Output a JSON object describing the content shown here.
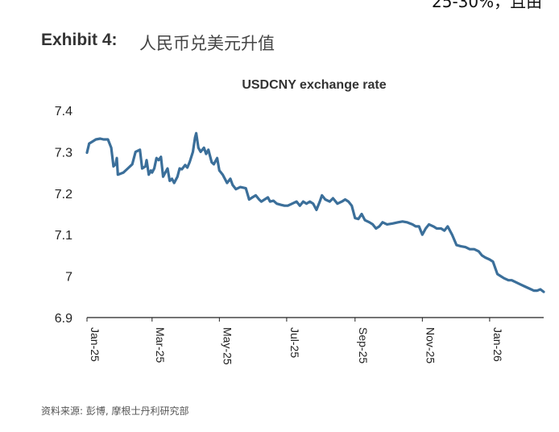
{
  "header": {
    "clipped_text": "25-30%，且由",
    "exhibit_label": "Exhibit 4:",
    "exhibit_title": "人民币兑美元升值"
  },
  "footer": {
    "source": "资料来源: 彭博, 摩根士丹利研究部"
  },
  "colors": {
    "line": "#3B6F9A",
    "axis": "#222222"
  },
  "chart_data": {
    "type": "line",
    "title": "USDCNY exchange rate",
    "xlabel": "",
    "ylabel": "",
    "ylim": [
      6.9,
      7.4
    ],
    "yticks": [
      7.4,
      7.3,
      7.2,
      7.1,
      7,
      6.9
    ],
    "ytick_labels": [
      "7.4",
      "7.3",
      "7.2",
      "7.1",
      "7",
      "6.9"
    ],
    "xlim": [
      "2025-01-01",
      "2026-02-19"
    ],
    "xticks": [
      "2025-01-01",
      "2025-03-01",
      "2025-05-01",
      "2025-07-01",
      "2025-09-01",
      "2025-11-01",
      "2026-01-01"
    ],
    "xtick_labels": [
      "Jan-25",
      "Mar-25",
      "May-25",
      "Jul-25",
      "Sep-25",
      "Nov-25",
      "Jan-26"
    ],
    "grid": false,
    "legend": "none",
    "x": [
      "2025-01-01",
      "2025-01-03",
      "2025-01-06",
      "2025-01-09",
      "2025-01-13",
      "2025-01-16",
      "2025-01-20",
      "2025-01-23",
      "2025-01-25",
      "2025-01-27",
      "2025-01-28",
      "2025-01-29",
      "2025-02-03",
      "2025-02-07",
      "2025-02-11",
      "2025-02-14",
      "2025-02-18",
      "2025-02-20",
      "2025-02-23",
      "2025-02-24",
      "2025-02-26",
      "2025-02-28",
      "2025-03-01",
      "2025-03-03",
      "2025-03-05",
      "2025-03-07",
      "2025-03-09",
      "2025-03-11",
      "2025-03-13",
      "2025-03-15",
      "2025-03-17",
      "2025-03-19",
      "2025-03-21",
      "2025-03-24",
      "2025-03-26",
      "2025-03-28",
      "2025-03-31",
      "2025-04-02",
      "2025-04-04",
      "2025-04-07",
      "2025-04-09",
      "2025-04-10",
      "2025-04-12",
      "2025-04-14",
      "2025-04-17",
      "2025-04-19",
      "2025-04-21",
      "2025-04-24",
      "2025-04-26",
      "2025-04-29",
      "2025-05-01",
      "2025-05-04",
      "2025-05-08",
      "2025-05-11",
      "2025-05-13",
      "2025-05-16",
      "2025-05-20",
      "2025-05-25",
      "2025-05-28",
      "2025-05-31",
      "2025-06-03",
      "2025-06-06",
      "2025-06-08",
      "2025-06-11",
      "2025-06-14",
      "2025-06-16",
      "2025-06-19",
      "2025-06-22",
      "2025-06-26",
      "2025-06-29",
      "2025-07-02",
      "2025-07-06",
      "2025-07-10",
      "2025-07-13",
      "2025-07-16",
      "2025-07-19",
      "2025-07-22",
      "2025-07-25",
      "2025-07-28",
      "2025-07-31",
      "2025-08-02",
      "2025-08-05",
      "2025-08-09",
      "2025-08-12",
      "2025-08-16",
      "2025-08-20",
      "2025-08-23",
      "2025-08-26",
      "2025-08-29",
      "2025-09-01",
      "2025-09-04",
      "2025-09-07",
      "2025-09-10",
      "2025-09-14",
      "2025-09-17",
      "2025-09-20",
      "2025-09-23",
      "2025-09-26",
      "2025-09-30",
      "2025-10-05",
      "2025-10-10",
      "2025-10-14",
      "2025-10-18",
      "2025-10-23",
      "2025-10-26",
      "2025-10-29",
      "2025-11-01",
      "2025-11-04",
      "2025-11-07",
      "2025-11-11",
      "2025-11-14",
      "2025-11-18",
      "2025-11-21",
      "2025-11-24",
      "2025-11-28",
      "2025-12-02",
      "2025-12-06",
      "2025-12-10",
      "2025-12-14",
      "2025-12-18",
      "2025-12-22",
      "2025-12-25",
      "2025-12-28",
      "2026-01-01",
      "2026-01-04",
      "2026-01-08",
      "2026-01-11",
      "2026-01-14",
      "2026-01-18",
      "2026-01-21",
      "2026-01-25",
      "2026-01-29",
      "2026-02-02",
      "2026-02-06",
      "2026-02-10",
      "2026-02-13",
      "2026-02-16",
      "2026-02-19"
    ],
    "series": [
      {
        "values": [
          7.298,
          7.32,
          7.325,
          7.33,
          7.332,
          7.33,
          7.33,
          7.31,
          7.265,
          7.27,
          7.285,
          7.245,
          7.25,
          7.26,
          7.27,
          7.3,
          7.305,
          7.26,
          7.265,
          7.28,
          7.245,
          7.255,
          7.25,
          7.26,
          7.285,
          7.28,
          7.288,
          7.24,
          7.25,
          7.26,
          7.23,
          7.235,
          7.225,
          7.24,
          7.26,
          7.258,
          7.268,
          7.262,
          7.275,
          7.3,
          7.335,
          7.345,
          7.31,
          7.3,
          7.31,
          7.295,
          7.305,
          7.275,
          7.27,
          7.285,
          7.255,
          7.245,
          7.225,
          7.235,
          7.22,
          7.21,
          7.215,
          7.212,
          7.185,
          7.19,
          7.195,
          7.185,
          7.18,
          7.185,
          7.19,
          7.18,
          7.182,
          7.175,
          7.172,
          7.17,
          7.17,
          7.175,
          7.18,
          7.17,
          7.18,
          7.175,
          7.18,
          7.175,
          7.16,
          7.18,
          7.195,
          7.185,
          7.18,
          7.188,
          7.175,
          7.18,
          7.185,
          7.18,
          7.17,
          7.14,
          7.138,
          7.15,
          7.135,
          7.13,
          7.125,
          7.115,
          7.12,
          7.13,
          7.125,
          7.127,
          7.13,
          7.132,
          7.13,
          7.125,
          7.12,
          7.12,
          7.1,
          7.115,
          7.125,
          7.12,
          7.115,
          7.115,
          7.11,
          7.12,
          7.1,
          7.075,
          7.072,
          7.07,
          7.065,
          7.065,
          7.06,
          7.05,
          7.045,
          7.04,
          7.035,
          7.005,
          7.0,
          6.995,
          6.99,
          6.99,
          6.985,
          6.98,
          6.975,
          6.97,
          6.965,
          6.965,
          6.968,
          6.962
        ]
      }
    ]
  }
}
